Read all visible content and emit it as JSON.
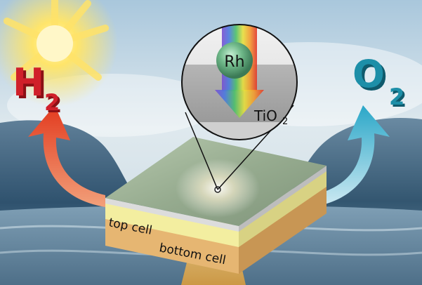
{
  "labels": {
    "hydrogen": {
      "element": "H",
      "subscript": "2"
    },
    "oxygen": {
      "element": "O",
      "subscript": "2"
    },
    "catalyst": "Rh",
    "oxide": {
      "base": "TiO",
      "subscript": "2"
    },
    "top_layer": "top cell",
    "bottom_layer": "bottom cell"
  },
  "colors": {
    "hydrogen": "#d0202a",
    "oxygen": "#1d8fa8",
    "top_cell": "#f3eea0",
    "bottom_cell": "#e6b672",
    "surface": "#9fb39a"
  }
}
